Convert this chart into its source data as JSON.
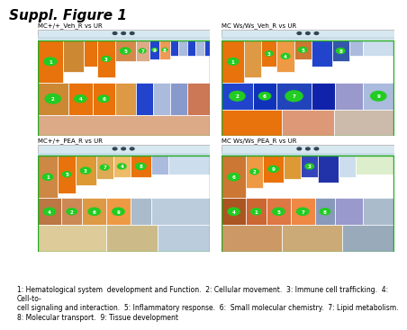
{
  "title": "Suppl. Figure 1",
  "panels": [
    {
      "label": "MC+/+_Veh_R vs UR",
      "row": 0,
      "col": 0
    },
    {
      "label": "MC Ws/Ws_Veh_R vs UR",
      "row": 0,
      "col": 1
    },
    {
      "label": "MC+/+_PEA_R vs UR",
      "row": 1,
      "col": 0
    },
    {
      "label": "MC Ws/Ws_PEA_R vs UR",
      "row": 1,
      "col": 1
    }
  ],
  "caption": "1: Hematological system  development and Function.  2: Cellular movement.  3: Immune cell trafficking.  4: Cell-to-\ncell signaling and interaction.  5: Inflammatory response.  6:  Small molecular chemistry.  7: Lipid metabolism.\n8: Molecular transport.  9: Tissue development",
  "bg_color": "#ffffff",
  "panel_bg": "#f5f0eb",
  "orange": "#e8720c",
  "blue": "#2244cc",
  "light_blue": "#aabbdd",
  "white": "#ffffff",
  "green_circle": "#22cc22",
  "title_fontsize": 11,
  "label_fontsize": 5,
  "caption_fontsize": 5.5
}
